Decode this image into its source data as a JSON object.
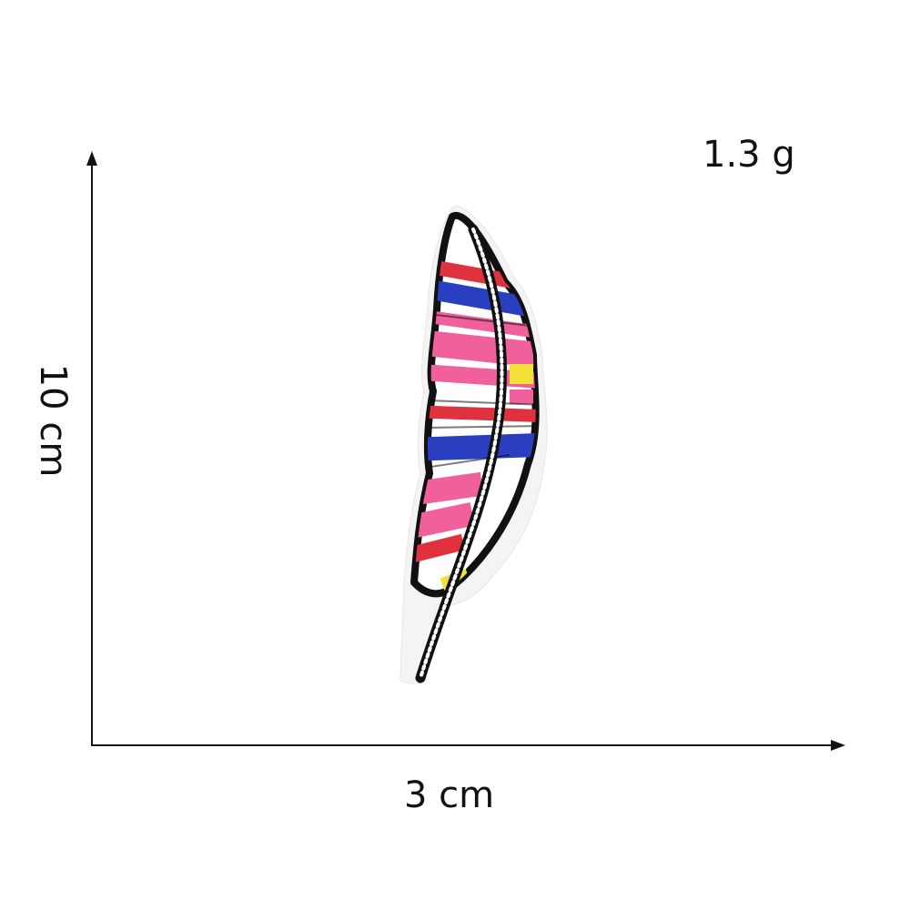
{
  "measurements": {
    "weight": "1.3 g",
    "width": "3 cm",
    "height": "10 cm"
  },
  "product": {
    "icon": "feather-patch",
    "colors": {
      "outline": "#111111",
      "border": "#f4f4f4",
      "pink": "#f0609a",
      "blue": "#2a3fc0",
      "red": "#e0323e",
      "yellow": "#f2e13a",
      "white": "#ffffff"
    }
  }
}
